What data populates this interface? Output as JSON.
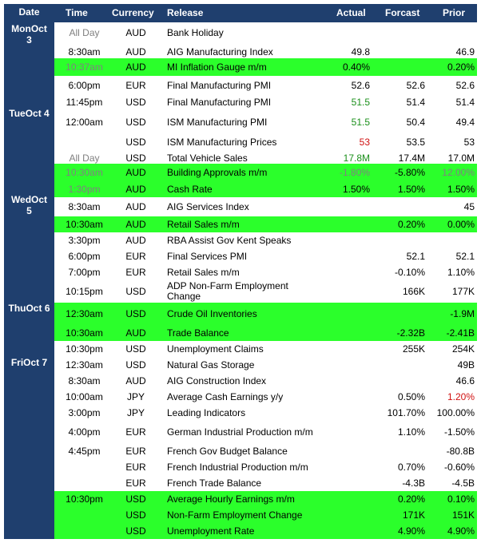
{
  "header": {
    "date": "Date",
    "time": "Time",
    "currency": "Currency",
    "release": "Release",
    "actual": "Actual",
    "forecast": "Forcast",
    "prior": "Prior"
  },
  "days": [
    {
      "line1": "MonOct",
      "line2": "3"
    },
    {
      "line1": "TueOct 4",
      "line2": ""
    },
    {
      "line1": "WedOct",
      "line2": "5"
    },
    {
      "line1": "ThuOct 6",
      "line2": ""
    },
    {
      "line1": "FriOct 7",
      "line2": ""
    }
  ],
  "rows": [
    {
      "time": "All Day",
      "currency": "AUD",
      "release": "Bank Holiday",
      "actual": "",
      "forecast": "",
      "prior": ""
    },
    {
      "time": "8:30am",
      "currency": "AUD",
      "release": "AIG Manufacturing Index",
      "actual": "49.8",
      "forecast": "",
      "prior": "46.9"
    },
    {
      "time": "10:37am",
      "currency": "AUD",
      "release": "MI Inflation Gauge m/m",
      "actual": "0.40%",
      "forecast": "",
      "prior": "0.20%"
    },
    {
      "time": "6:00pm",
      "currency": "EUR",
      "release": "Final Manufacturing PMI",
      "actual": "52.6",
      "forecast": "52.6",
      "prior": "52.6"
    },
    {
      "time": "11:45pm",
      "currency": "USD",
      "release": "Final Manufacturing PMI",
      "actual": "51.5",
      "forecast": "51.4",
      "prior": "51.4"
    },
    {
      "time": "12:00am",
      "currency": "USD",
      "release": "ISM Manufacturing PMI",
      "actual": "51.5",
      "forecast": "50.4",
      "prior": "49.4"
    },
    {
      "time": "",
      "currency": "USD",
      "release": "ISM Manufacturing Prices",
      "actual": "53",
      "forecast": "53.5",
      "prior": "53"
    },
    {
      "time": "All Day",
      "currency": "USD",
      "release": "Total Vehicle Sales",
      "actual": "17.8M",
      "forecast": "17.4M",
      "prior": "17.0M"
    },
    {
      "time": "10:30am",
      "currency": "AUD",
      "release": "Building Approvals m/m",
      "actual": "-1.80%",
      "forecast": "-5.80%",
      "prior": "12.00%"
    },
    {
      "time": "1:30pm",
      "currency": "AUD",
      "release": "Cash Rate",
      "actual": "1.50%",
      "forecast": "1.50%",
      "prior": "1.50%"
    },
    {
      "time": "8:30am",
      "currency": "AUD",
      "release": "AIG Services Index",
      "actual": "",
      "forecast": "",
      "prior": "45"
    },
    {
      "time": "10:30am",
      "currency": "AUD",
      "release": "Retail Sales m/m",
      "actual": "",
      "forecast": "0.20%",
      "prior": "0.00%"
    },
    {
      "time": "3:30pm",
      "currency": "AUD",
      "release": "RBA Assist Gov Kent Speaks",
      "actual": "",
      "forecast": "",
      "prior": ""
    },
    {
      "time": "6:00pm",
      "currency": "EUR",
      "release": "Final Services PMI",
      "actual": "",
      "forecast": "52.1",
      "prior": "52.1"
    },
    {
      "time": "7:00pm",
      "currency": "EUR",
      "release": "Retail Sales m/m",
      "actual": "",
      "forecast": "-0.10%",
      "prior": "1.10%"
    },
    {
      "time": "10:15pm",
      "currency": "USD",
      "release": "ADP Non-Farm Employment Change",
      "actual": "",
      "forecast": "166K",
      "prior": "177K"
    },
    {
      "time": "12:30am",
      "currency": "USD",
      "release": "Crude Oil Inventories",
      "actual": "",
      "forecast": "",
      "prior": "-1.9M"
    },
    {
      "time": "10:30am",
      "currency": "AUD",
      "release": "Trade Balance",
      "actual": "",
      "forecast": "-2.32B",
      "prior": "-2.41B"
    },
    {
      "time": "10:30pm",
      "currency": "USD",
      "release": "Unemployment Claims",
      "actual": "",
      "forecast": "255K",
      "prior": "254K"
    },
    {
      "time": "12:30am",
      "currency": "USD",
      "release": "Natural Gas Storage",
      "actual": "",
      "forecast": "",
      "prior": "49B"
    },
    {
      "time": "8:30am",
      "currency": "AUD",
      "release": "AIG Construction Index",
      "actual": "",
      "forecast": "",
      "prior": "46.6"
    },
    {
      "time": "10:00am",
      "currency": "JPY",
      "release": "Average Cash Earnings y/y",
      "actual": "",
      "forecast": "0.50%",
      "prior": "1.20%"
    },
    {
      "time": "3:00pm",
      "currency": "JPY",
      "release": "Leading Indicators",
      "actual": "",
      "forecast": "101.70%",
      "prior": "100.00%"
    },
    {
      "time": "4:00pm",
      "currency": "EUR",
      "release": "German Industrial Production m/m",
      "actual": "",
      "forecast": "1.10%",
      "prior": "-1.50%"
    },
    {
      "time": "4:45pm",
      "currency": "EUR",
      "release": "French Gov Budget Balance",
      "actual": "",
      "forecast": "",
      "prior": "-80.8B"
    },
    {
      "time": "",
      "currency": "EUR",
      "release": "French Industrial Production m/m",
      "actual": "",
      "forecast": "0.70%",
      "prior": "-0.60%"
    },
    {
      "time": "",
      "currency": "EUR",
      "release": "French Trade Balance",
      "actual": "",
      "forecast": "-4.3B",
      "prior": "-4.5B"
    },
    {
      "time": "10:30pm",
      "currency": "USD",
      "release": "Average Hourly Earnings m/m",
      "actual": "",
      "forecast": "0.20%",
      "prior": "0.10%"
    },
    {
      "time": "",
      "currency": "USD",
      "release": "Non-Farm Employment Change",
      "actual": "",
      "forecast": "171K",
      "prior": "151K"
    },
    {
      "time": "",
      "currency": "USD",
      "release": "Unemployment Rate",
      "actual": "",
      "forecast": "4.90%",
      "prior": "4.90%"
    }
  ],
  "colors": {
    "header_bg": "#1f3f6e",
    "highlight": "#2bff2b",
    "positive": "#1a8f1a",
    "negative": "#d01010",
    "muted": "#808080"
  }
}
